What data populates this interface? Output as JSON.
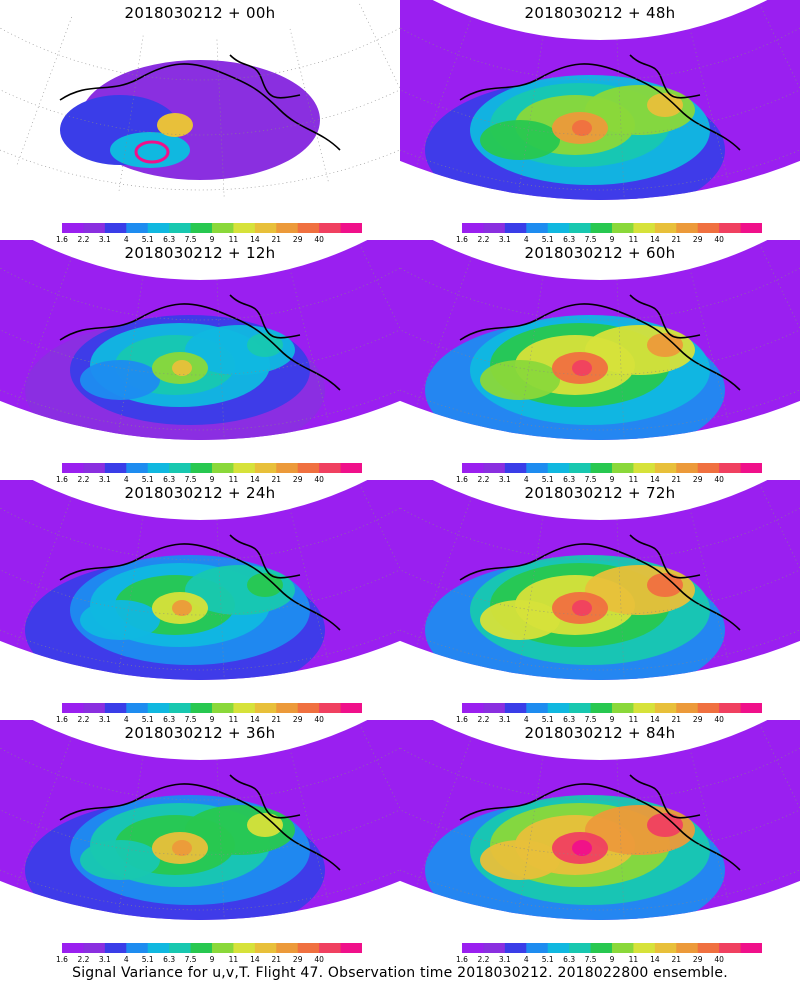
{
  "panels": [
    {
      "title": "2018030212 + 00h",
      "intensity": 0.0
    },
    {
      "title": "2018030212 + 48h",
      "intensity": 0.6
    },
    {
      "title": "2018030212 + 12h",
      "intensity": 0.15
    },
    {
      "title": "2018030212 + 60h",
      "intensity": 0.75
    },
    {
      "title": "2018030212 + 24h",
      "intensity": 0.3
    },
    {
      "title": "2018030212 + 72h",
      "intensity": 0.85
    },
    {
      "title": "2018030212 + 36h",
      "intensity": 0.45
    },
    {
      "title": "2018030212 + 84h",
      "intensity": 1.0
    }
  ],
  "colorbar": {
    "colors": [
      "#9a1ff0",
      "#8a2fe0",
      "#3a3de8",
      "#1e8cf0",
      "#10b8e0",
      "#18c8b0",
      "#28c850",
      "#8ad83a",
      "#d6e23a",
      "#e8c03a",
      "#ec9a3a",
      "#f07040",
      "#f04060",
      "#f0108a"
    ],
    "labels": [
      "1.6",
      "2.2",
      "3.1",
      "4",
      "5.1",
      "6.3",
      "7.5",
      "9",
      "11",
      "14",
      "21",
      "29",
      "40"
    ]
  },
  "footer": "Signal Variance for u,v,T. Flight 47. Observation time 2018030212. 2018022800 ensemble."
}
